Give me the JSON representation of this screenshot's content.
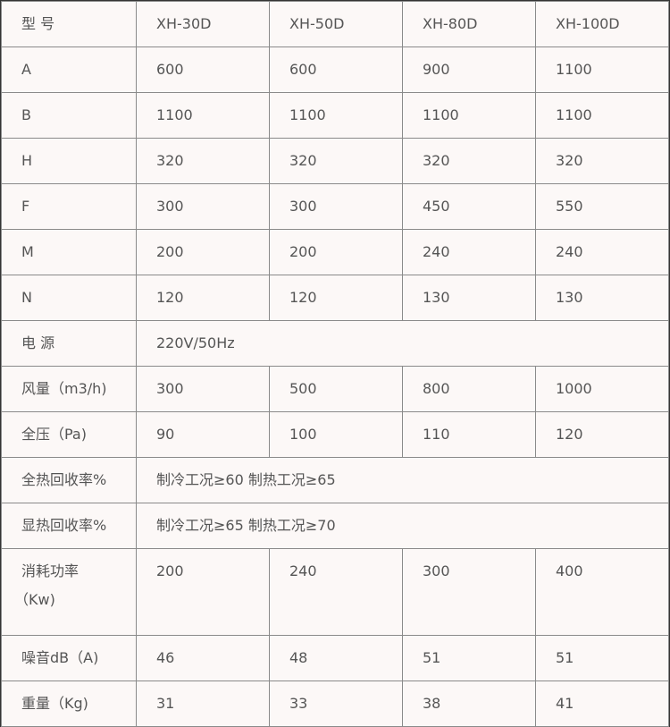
{
  "table": {
    "header": [
      "型 号",
      "XH-30D",
      "XH-50D",
      "XH-80D",
      "XH-100D"
    ],
    "rows": [
      {
        "label": "A",
        "cells": [
          "600",
          "600",
          "900",
          "1100"
        ]
      },
      {
        "label": "B",
        "cells": [
          "1100",
          "1100",
          "1100",
          "1100"
        ]
      },
      {
        "label": "H",
        "cells": [
          "320",
          "320",
          "320",
          "320"
        ]
      },
      {
        "label": "F",
        "cells": [
          "300",
          "300",
          "450",
          "550"
        ]
      },
      {
        "label": "M",
        "cells": [
          "200",
          "200",
          "240",
          "240"
        ]
      },
      {
        "label": "N",
        "cells": [
          "120",
          "120",
          "130",
          "130"
        ]
      },
      {
        "label": "电 源",
        "span": "220V/50Hz"
      },
      {
        "label": "风量（m3/h)",
        "cells": [
          "300",
          "500",
          "800",
          "1000"
        ]
      },
      {
        "label": "全压（Pa)",
        "cells": [
          "90",
          "100",
          "110",
          "120"
        ]
      },
      {
        "label": "全热回收率%",
        "span": "制冷工况≥60 制热工况≥65"
      },
      {
        "label": "显热回收率%",
        "span": "制冷工况≥65 制热工况≥70"
      },
      {
        "label": "消耗功率",
        "label2": "（Kw)",
        "cells": [
          "200",
          "240",
          "300",
          "400"
        ]
      },
      {
        "label": "噪音dB（A)",
        "cells": [
          "46",
          "48",
          "51",
          "51"
        ]
      },
      {
        "label": "重量（Kg)",
        "cells": [
          "31",
          "33",
          "38",
          "41"
        ]
      }
    ]
  }
}
